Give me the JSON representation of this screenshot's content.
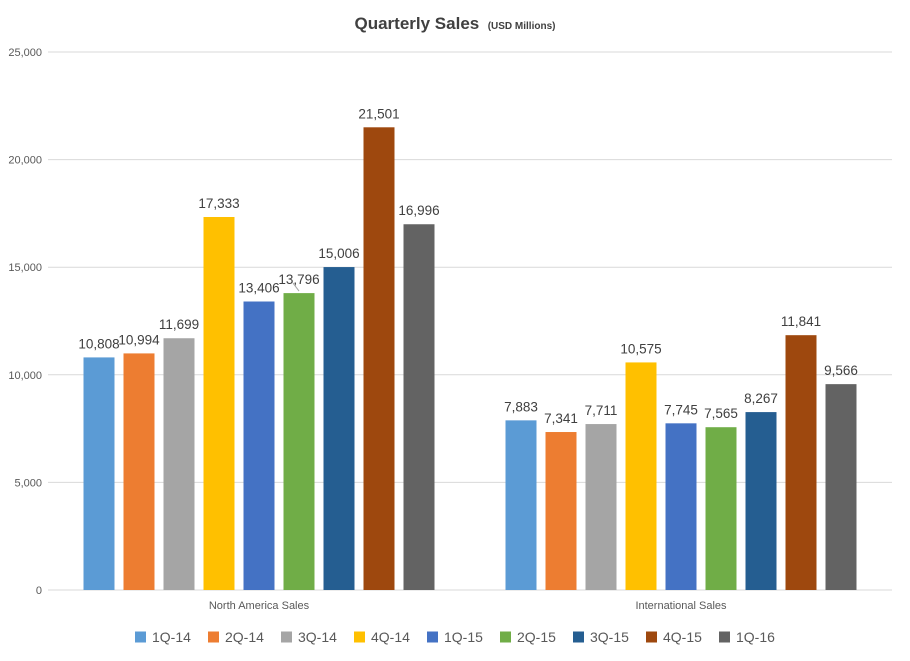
{
  "chart_data": {
    "type": "bar",
    "title": "Quarterly  Sales",
    "subtitle": "(USD Millions)",
    "xlabel": "",
    "ylabel": "",
    "ylim": [
      0,
      25000
    ],
    "yticks": [
      0,
      5000,
      10000,
      15000,
      20000,
      25000
    ],
    "ytick_labels": [
      "0",
      "5,000",
      "10,000",
      "15,000",
      "20,000",
      "25,000"
    ],
    "grid": true,
    "legend_position": "bottom",
    "categories": [
      "North America Sales",
      "International Sales"
    ],
    "series": [
      {
        "name": "1Q-14",
        "color": "#5B9BD5",
        "values": [
          10808,
          7883
        ],
        "labels": [
          "10,808",
          "7,883"
        ]
      },
      {
        "name": "2Q-14",
        "color": "#ED7D31",
        "values": [
          10994,
          7341
        ],
        "labels": [
          "10,994",
          "7,341"
        ]
      },
      {
        "name": "3Q-14",
        "color": "#A5A5A5",
        "values": [
          11699,
          7711
        ],
        "labels": [
          "11,699",
          "7,711"
        ]
      },
      {
        "name": "4Q-14",
        "color": "#FFC000",
        "values": [
          17333,
          10575
        ],
        "labels": [
          "17,333",
          "10,575"
        ]
      },
      {
        "name": "1Q-15",
        "color": "#4472C4",
        "values": [
          13406,
          7745
        ],
        "labels": [
          "13,406",
          "7,745"
        ]
      },
      {
        "name": "2Q-15",
        "color": "#70AD47",
        "values": [
          13796,
          7565
        ],
        "labels": [
          "13,796",
          "7,565"
        ]
      },
      {
        "name": "3Q-15",
        "color": "#255E91",
        "values": [
          15006,
          8267
        ],
        "labels": [
          "15,006",
          "8,267"
        ]
      },
      {
        "name": "4Q-15",
        "color": "#9E480E",
        "values": [
          21501,
          11841
        ],
        "labels": [
          "21,501",
          "11,841"
        ]
      },
      {
        "name": "1Q-16",
        "color": "#636363",
        "values": [
          16996,
          9566
        ],
        "labels": [
          "16,996",
          "9,566"
        ]
      }
    ]
  }
}
